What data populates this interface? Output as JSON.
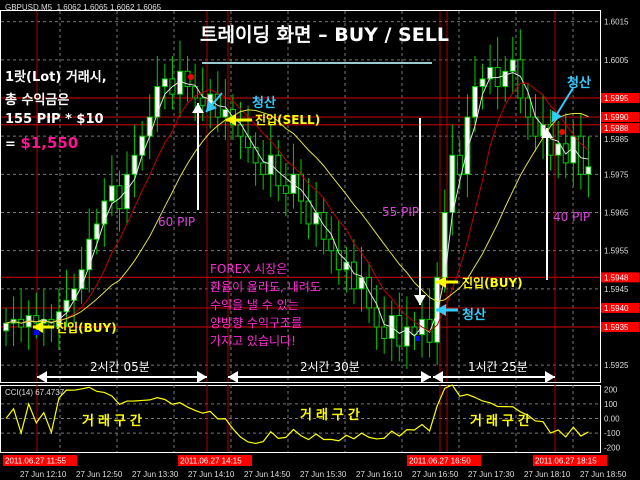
{
  "header": {
    "symbol": "GBPUSD,M5",
    "ohlc": "1.6062 1.6065 1.6062 1.6065"
  },
  "annotations": {
    "title": "트레이딩 화면 – BUY / SELL",
    "summary_lines": [
      "1랏(Lot) 거래시,",
      "총 수익금은",
      "155 PIP * $10"
    ],
    "summary_eq": "= ",
    "summary_total": "$1,550",
    "close_label": "청산",
    "entry_sell": "진입(SELL)",
    "entry_buy": "진입(BUY)",
    "pip_labels": [
      "60 PIP",
      "55 PIP",
      "40 PIP"
    ],
    "forex_lines": [
      "FOREX 시장은",
      "환율이 올라도, 내려도",
      "수익을 낼 수 있는",
      "양방향 수익구조를",
      "가지고 있습니다!"
    ],
    "durations": [
      "2시간 05분",
      "2시간 30분",
      "1시간 25분"
    ],
    "trade_zone": "거래구간"
  },
  "colors": {
    "bg": "#000000",
    "candle": "#00cc00",
    "level_line": "#b00000",
    "price_label_bg": "#ff0000",
    "ma_fast": "#e0e0e0",
    "ma_mid": "#c00000",
    "ma_slow": "#e0e040",
    "cci_line": "#ffff00",
    "close_color": "#33ccff",
    "entry_color": "#ffff00"
  },
  "chart_data": {
    "type": "candlestick",
    "symbol": "GBPUSD,M5",
    "ylim": [
      1.592,
      1.602
    ],
    "grid": true,
    "closes": [
      1.5936,
      1.5937,
      1.5935,
      1.5938,
      1.5936,
      1.5937,
      1.5935,
      1.5939,
      1.5942,
      1.5945,
      1.595,
      1.5958,
      1.5962,
      1.5968,
      1.5972,
      1.5966,
      1.5975,
      1.598,
      1.5985,
      1.599,
      1.5998,
      1.6,
      1.5996,
      1.6002,
      1.5998,
      1.5995,
      1.5993,
      1.5996,
      1.599,
      1.5992,
      1.5988,
      1.5985,
      1.5982,
      1.5978,
      1.5975,
      1.598,
      1.5972,
      1.597,
      1.5975,
      1.5968,
      1.5962,
      1.5965,
      1.5958,
      1.5955,
      1.595,
      1.5952,
      1.5945,
      1.5948,
      1.594,
      1.5935,
      1.5932,
      1.5938,
      1.593,
      1.5935,
      1.5933,
      1.5937,
      1.5931,
      1.5948,
      1.5965,
      1.598,
      1.5975,
      1.599,
      1.5998,
      1.6,
      1.6003,
      1.5998,
      1.6002,
      1.6005,
      1.5995,
      1.599,
      1.5985,
      1.5988,
      1.598,
      1.5983,
      1.5978,
      1.5985,
      1.5975,
      1.5977
    ],
    "price_ticks": [
      "1.6015",
      "1.6005",
      "1.5985",
      "1.5975",
      "1.5965",
      "1.5955",
      "1.5945",
      "1.5925"
    ],
    "level_lines": [
      "1.5995",
      "1.5990",
      "1.5988",
      "1.5948",
      "1.5940",
      "1.5935"
    ],
    "time_ticks": [
      "27 Jun 12:10",
      "27 Jun 12:50",
      "27 Jun 13:30",
      "27 Jun 14:10",
      "27 Jun 14:50",
      "27 Jun 15:30",
      "27 Jun 16:10",
      "27 Jun 16:50",
      "27 Jun 17:30",
      "27 Jun 18:10",
      "27 Jun 18:50"
    ],
    "marked_times": [
      "2011.06.27 11:55",
      "2011.06.27 14:15",
      "2011.06.27 16:50",
      "2011.06.27 18:15"
    ],
    "indicator": {
      "name": "CCI(14)",
      "value": "67.4737",
      "ticks": [
        "200",
        "100",
        "0.00",
        "-100",
        "-200"
      ],
      "ylim": [
        -230,
        230
      ]
    }
  }
}
